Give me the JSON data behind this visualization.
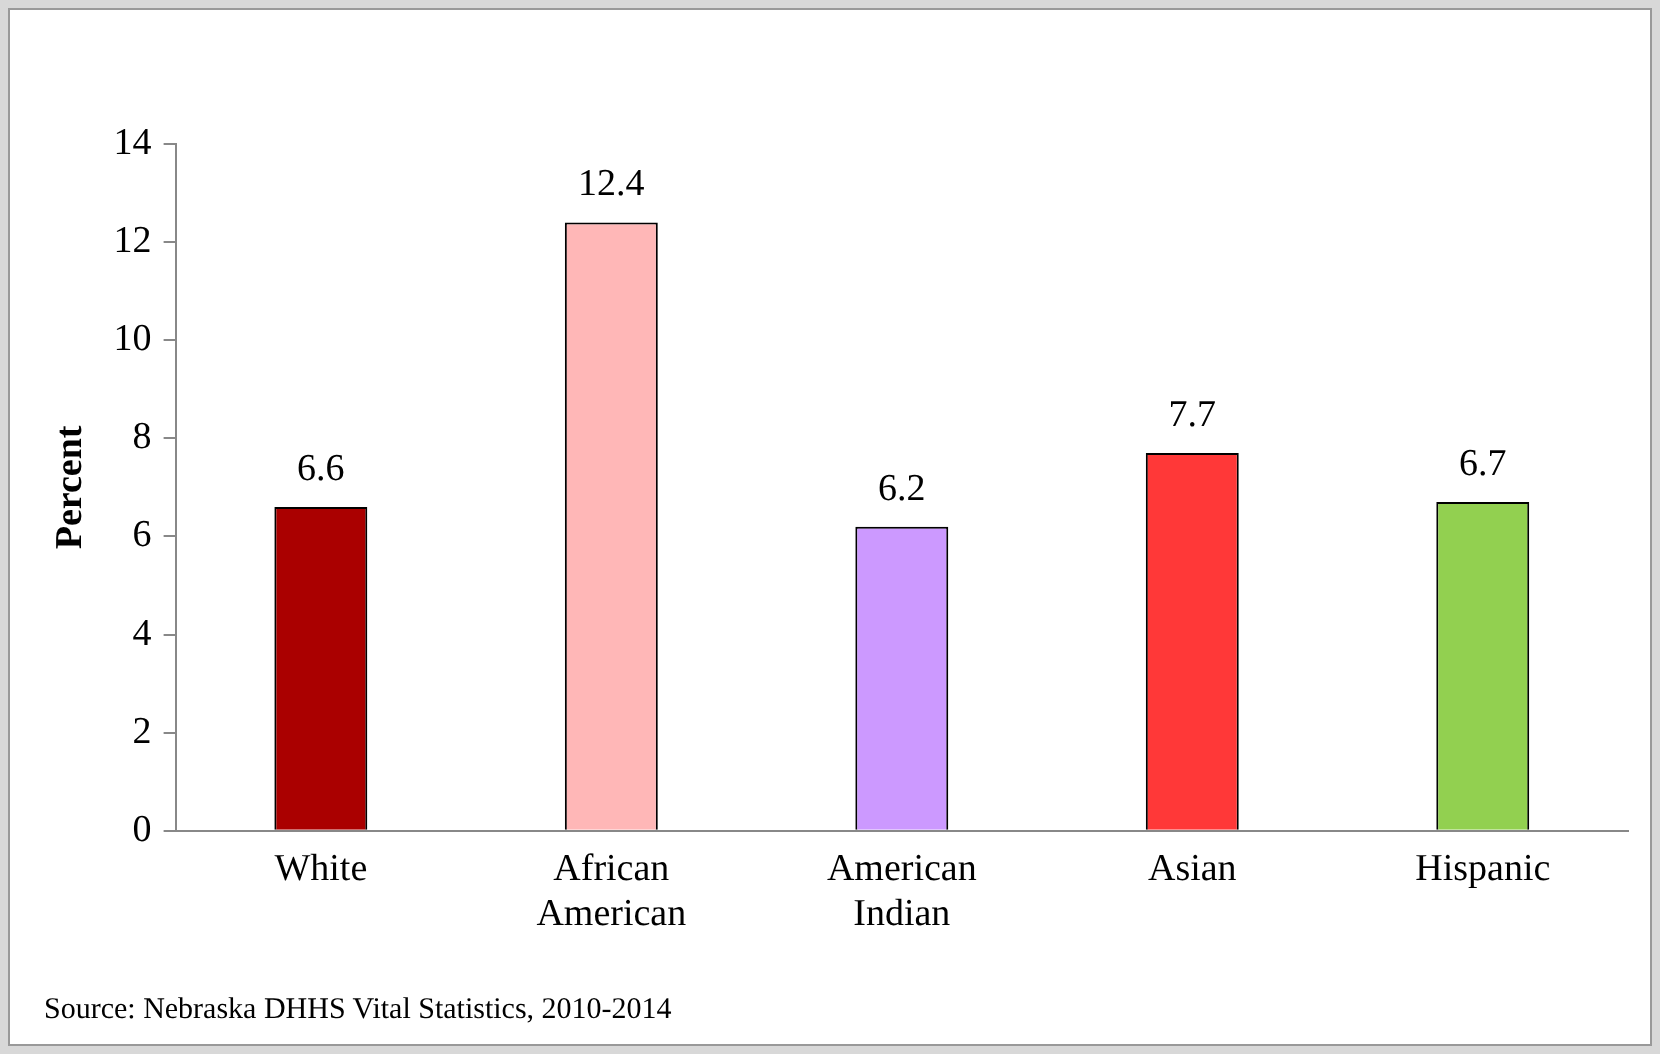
{
  "chart_data": {
    "type": "bar",
    "ylabel": "Percent",
    "categories": [
      "White",
      "African American",
      "American Indian",
      "Asian",
      "Hispanic"
    ],
    "values": [
      6.6,
      12.4,
      6.2,
      7.7,
      6.7
    ],
    "colors": [
      "#aa0000",
      "#ffb7b7",
      "#cc99ff",
      "#ff3838",
      "#92d050"
    ],
    "ylim": [
      0,
      14
    ],
    "yticks": [
      0,
      2,
      4,
      6,
      8,
      10,
      12,
      14
    ],
    "data_labels": true,
    "grid": false,
    "legend": false,
    "annotations": [
      "Source: Nebraska DHHS Vital Statistics, 2010-2014"
    ]
  }
}
